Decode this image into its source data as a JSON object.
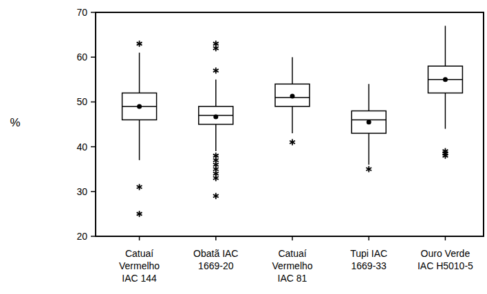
{
  "chart_data": {
    "type": "box",
    "ylabel": "%",
    "categories": [
      "Catuaí\nVermelho\nIAC 144",
      "Obatã IAC\n1669-20",
      "Catuaí\nVermelho\nIAC 81",
      "Tupi IAC\n1669-33",
      "Ouro Verde\nIAC H5010-5"
    ],
    "min": [
      37,
      39,
      43,
      36,
      44
    ],
    "q1": [
      46,
      45,
      49,
      43,
      52
    ],
    "median": [
      49,
      47,
      51,
      46,
      55
    ],
    "q3": [
      52,
      49,
      54,
      48,
      58
    ],
    "max": [
      61,
      55,
      60,
      54,
      67
    ],
    "mean": [
      49,
      46.7,
      51.3,
      45.5,
      55
    ],
    "outliers": [
      [
        63,
        31,
        25
      ],
      [
        63,
        62,
        57,
        38,
        37,
        36,
        35,
        34,
        33,
        29
      ],
      [
        41
      ],
      [
        35
      ],
      [
        39,
        38.5,
        38
      ]
    ],
    "color": "#000000",
    "ylim": [
      20,
      70
    ],
    "yticks": [
      20,
      30,
      40,
      50,
      60,
      70
    ]
  }
}
